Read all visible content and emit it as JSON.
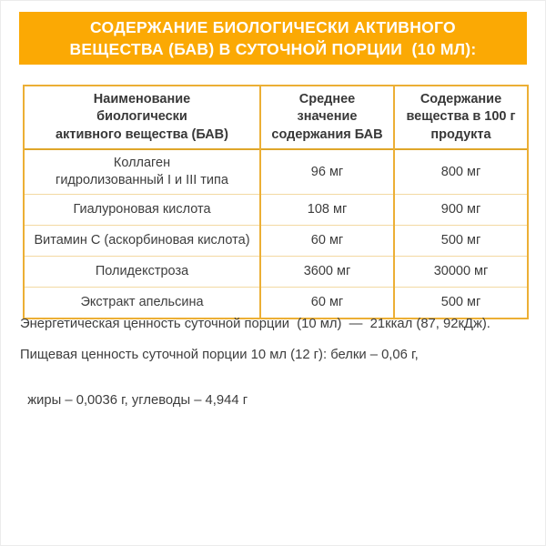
{
  "banner": {
    "line1": "СОДЕРЖАНИЕ БИОЛОГИЧЕСКИ АКТИВНОГО",
    "line2": "ВЕЩЕСТВА (БАВ) В СУТОЧНОЙ ПОРЦИИ  (10 МЛ):",
    "background_color": "#FBA904",
    "text_color": "#FFFFFF"
  },
  "table": {
    "header": {
      "col1": "Наименование\nбиологически\nактивного вещества (БАВ)",
      "col2": "Среднее\nзначение\nсодержания БАВ",
      "col3": "Содержание\nвещества в 100 г\nпродукта"
    },
    "rows": [
      {
        "name": "Коллаген\nгидролизованный I и III типа",
        "avg_daily": "96 мг",
        "per_100g": "800 мг"
      },
      {
        "name": "Гиалуроновая кислота",
        "avg_daily": "108 мг",
        "per_100g": "900 мг"
      },
      {
        "name": "Витамин С (аскорбиновая кислота)",
        "avg_daily": "60 мг",
        "per_100g": "500 мг"
      },
      {
        "name": "Полидекстроза",
        "avg_daily": "3600 мг",
        "per_100g": "30000 мг"
      },
      {
        "name": "Экстракт апельсина",
        "avg_daily": "60 мг",
        "per_100g": "500 мг"
      }
    ],
    "border_color": "#ECAF35",
    "header_divider_color": "#DFA62A",
    "row_divider_color": "#F3D9A2"
  },
  "footer": {
    "energy_line": "Энергетическая ценность суточной порции  (10 мл)  —  21ккал (87, 92кДж).",
    "nutrition_line1": "Пищевая ценность суточной порции 10 мл (12 г): белки – 0,06 г,",
    "nutrition_line2": "жиры – 0,0036 г, углеводы – 4,944 г"
  }
}
